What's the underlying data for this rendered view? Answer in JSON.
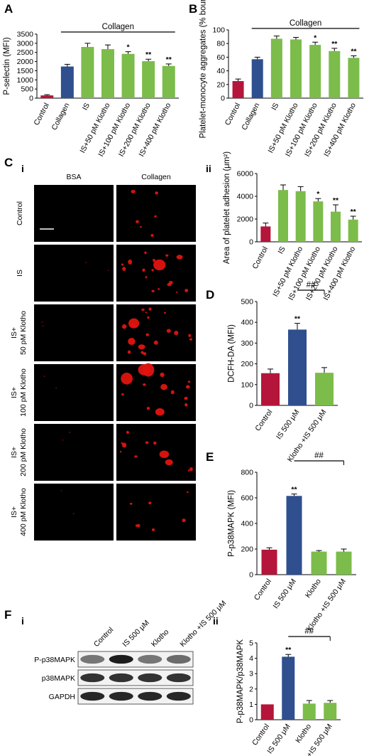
{
  "colors": {
    "control": "#b5153a",
    "is": "#2f4f8f",
    "klotho": "#7cbc4a",
    "micro_bg": "#000000",
    "platelet": "#e0140f",
    "blot_bg": "#f2f2f2"
  },
  "panel_labels": {
    "A": "A",
    "B": "B",
    "C": "C",
    "C_i": "i",
    "C_ii": "ii",
    "D": "D",
    "E": "E",
    "F": "F",
    "F_i": "i",
    "F_ii": "ii"
  },
  "chart_data": [
    {
      "id": "A",
      "type": "bar",
      "ylabel": "P-selectin (MFI)",
      "ylim": [
        0,
        3500
      ],
      "yticks": [
        0,
        500,
        1000,
        1500,
        2000,
        2500,
        3000,
        3500
      ],
      "categories": [
        "Control",
        "Collagen",
        "IS",
        "IS+50 pM Klotho",
        "IS+100 pM Klotho",
        "IS+200 pM Klotho",
        "IS+400 pM Klotho"
      ],
      "values": [
        150,
        1730,
        2800,
        2680,
        2420,
        2020,
        1760
      ],
      "errors": [
        40,
        120,
        200,
        230,
        120,
        110,
        110
      ],
      "significance": [
        "",
        "",
        "",
        "",
        "*",
        "**",
        "**"
      ],
      "bracket_label": "Collagen"
    },
    {
      "id": "B",
      "type": "bar",
      "ylabel": "Platelet-monocyte aggregates (% bound)",
      "ylim": [
        0,
        100
      ],
      "yticks": [
        0,
        20,
        40,
        60,
        80,
        100
      ],
      "categories": [
        "Control",
        "Collagen",
        "IS",
        "IS+50 pM Klotho",
        "IS+100 pM Klotho",
        "IS+200 pM Klotho",
        "IS+400 pM Klotho"
      ],
      "values": [
        25,
        57,
        87,
        86,
        78,
        69,
        59
      ],
      "errors": [
        3,
        3,
        4,
        3,
        4,
        4,
        3
      ],
      "significance": [
        "",
        "",
        "",
        "",
        "*",
        "**",
        "**"
      ],
      "bracket_label": "Collagen"
    },
    {
      "id": "C-ii",
      "type": "bar",
      "ylabel": "Area of platelet adhesion (μm²)",
      "ylim": [
        0,
        6000
      ],
      "yticks": [
        0,
        2000,
        4000,
        6000
      ],
      "categories": [
        "Control",
        "IS",
        "IS+50 pM Klotho",
        "IS+100 pM Klotho",
        "IS+200 pM Klotho",
        "IS+400 pM Klotho"
      ],
      "values": [
        1350,
        4550,
        4450,
        3550,
        2650,
        1950
      ],
      "errors": [
        300,
        450,
        400,
        250,
        600,
        300
      ],
      "significance": [
        "",
        "",
        "",
        "*",
        "**",
        "**"
      ]
    },
    {
      "id": "D",
      "type": "bar",
      "ylabel": "DCFH-DA (MFI)",
      "ylim": [
        0,
        500
      ],
      "yticks": [
        0,
        100,
        200,
        300,
        400,
        500
      ],
      "categories": [
        "Control",
        "IS 500 μM",
        "Klotho +IS 500 μM"
      ],
      "values": [
        155,
        365,
        157
      ],
      "errors": [
        20,
        30,
        25
      ],
      "significance": [
        "",
        "**",
        ""
      ],
      "bracket_label": "##"
    },
    {
      "id": "E",
      "type": "bar",
      "ylabel": "P-p38MAPK (MFI)",
      "ylim": [
        0,
        800
      ],
      "yticks": [
        0,
        200,
        400,
        600,
        800
      ],
      "categories": [
        "Control",
        "IS 500 μM",
        "Klotho",
        "Klotho +IS 500 μM"
      ],
      "values": [
        195,
        615,
        180,
        180
      ],
      "errors": [
        15,
        15,
        8,
        20
      ],
      "significance": [
        "",
        "**",
        "",
        ""
      ],
      "bracket_label": "##"
    },
    {
      "id": "F-ii",
      "type": "bar",
      "ylabel": "P-p38MAPK/p38MAPK",
      "ylim": [
        0,
        5
      ],
      "yticks": [
        0,
        1,
        2,
        3,
        4,
        5
      ],
      "categories": [
        "Control",
        "IS 500 μM",
        "Klotho",
        "Klotho +IS 500 μM"
      ],
      "values": [
        1.0,
        4.1,
        1.05,
        1.1
      ],
      "errors": [
        0,
        0.15,
        0.2,
        0.15
      ],
      "significance": [
        "",
        "**",
        "",
        ""
      ],
      "bracket_label": "##"
    }
  ],
  "micrographs": {
    "col_headers": [
      "BSA",
      "Collagen"
    ],
    "row_labels": [
      "Control",
      "IS",
      "IS+ 50 pM Klotho",
      "IS+ 100 pM Klotho",
      "IS+ 200 pM Klotho",
      "IS+ 400 pM Klotho"
    ],
    "platelet_density_per_row": [
      0.1,
      0.6,
      0.7,
      0.45,
      0.3,
      0.15
    ]
  },
  "blot": {
    "lane_labels": [
      "Control",
      "IS 500 μM",
      "Klotho",
      "Klotho +IS 500 μM"
    ],
    "row_labels": [
      "P-p38MAPK",
      "p38MAPK",
      "GAPDH"
    ]
  }
}
